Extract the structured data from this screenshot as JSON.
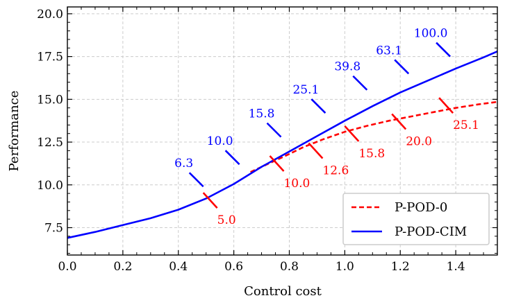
{
  "chart_data": {
    "type": "line",
    "title": "",
    "xlabel": "Control cost",
    "ylabel": "Performance",
    "xlim": [
      0.0,
      1.55
    ],
    "ylim": [
      5.9,
      20.4
    ],
    "xticks": [
      "0.0",
      "0.2",
      "0.4",
      "0.6",
      "0.8",
      "1.0",
      "1.2",
      "1.4"
    ],
    "yticks": [
      "7.5",
      "10.0",
      "12.5",
      "15.0",
      "17.5",
      "20.0"
    ],
    "xtick_values": [
      0.0,
      0.2,
      0.4,
      0.6,
      0.8,
      1.0,
      1.2,
      1.4
    ],
    "ytick_values": [
      7.5,
      10.0,
      12.5,
      15.0,
      17.5,
      20.0
    ],
    "grid": true,
    "legend_position": "bottom-right",
    "series": [
      {
        "name": "P-POD-0",
        "style": "dashed",
        "color": "#ff0000",
        "x": [
          0.66,
          0.72,
          0.78,
          0.85,
          0.92,
          1.0,
          1.08,
          1.16,
          1.24,
          1.32,
          1.4,
          1.48,
          1.55
        ],
        "y": [
          10.75,
          11.2,
          11.65,
          12.2,
          12.65,
          13.1,
          13.45,
          13.75,
          14.0,
          14.25,
          14.5,
          14.7,
          14.85
        ]
      },
      {
        "name": "P-POD-CIM",
        "style": "solid",
        "color": "#0000ff",
        "x": [
          0.0,
          0.1,
          0.2,
          0.3,
          0.4,
          0.5,
          0.6,
          0.7,
          0.8,
          0.9,
          1.0,
          1.1,
          1.2,
          1.3,
          1.4,
          1.5,
          1.55
        ],
        "y": [
          6.9,
          7.25,
          7.65,
          8.05,
          8.55,
          9.2,
          10.05,
          11.05,
          11.95,
          12.85,
          13.75,
          14.6,
          15.4,
          16.1,
          16.8,
          17.45,
          17.8
        ]
      }
    ],
    "annotations_red": [
      {
        "label": "5.0",
        "x": 0.54,
        "y": 8.65
      },
      {
        "label": "10.0",
        "x": 0.78,
        "y": 10.8
      },
      {
        "label": "12.6",
        "x": 0.92,
        "y": 11.55
      },
      {
        "label": "15.8",
        "x": 1.05,
        "y": 12.55
      },
      {
        "label": "20.0",
        "x": 1.22,
        "y": 13.25
      },
      {
        "label": "25.1",
        "x": 1.39,
        "y": 14.2
      }
    ],
    "annotations_blue": [
      {
        "label": "6.3",
        "x": 0.49,
        "y": 9.9
      },
      {
        "label": "10.0",
        "x": 0.62,
        "y": 11.2
      },
      {
        "label": "15.8",
        "x": 0.77,
        "y": 12.8
      },
      {
        "label": "25.1",
        "x": 0.93,
        "y": 14.2
      },
      {
        "label": "39.8",
        "x": 1.08,
        "y": 15.55
      },
      {
        "label": "63.1",
        "x": 1.23,
        "y": 16.5
      },
      {
        "label": "100.0",
        "x": 1.38,
        "y": 17.5
      }
    ]
  }
}
